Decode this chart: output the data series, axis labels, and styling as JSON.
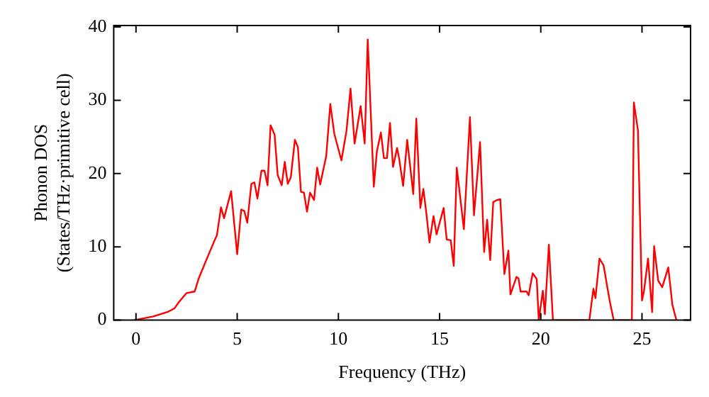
{
  "chart_data": {
    "type": "line",
    "xlabel": "Frequency (THz)",
    "ylabel": "Phonon DOS\n(States/THz·primitive cell)",
    "xlim": [
      -1.1,
      27.4
    ],
    "xticks": [
      0,
      5,
      10,
      15,
      20,
      25
    ],
    "ylim": [
      0,
      40.2
    ],
    "yticks": [
      0,
      10,
      20,
      30,
      40
    ],
    "grid": false,
    "legend": false,
    "marker": "none",
    "line_style": "solid",
    "x": [
      -0.1,
      0.85,
      1.55,
      1.9,
      2.1,
      2.5,
      2.9,
      3.1,
      3.55,
      3.9,
      4.0,
      4.2,
      4.35,
      4.7,
      5.0,
      5.2,
      5.35,
      5.5,
      5.7,
      5.85,
      6.0,
      6.2,
      6.35,
      6.5,
      6.65,
      6.85,
      7.0,
      7.2,
      7.35,
      7.5,
      7.65,
      7.85,
      8.0,
      8.15,
      8.3,
      8.45,
      8.6,
      8.8,
      8.95,
      9.1,
      9.4,
      9.6,
      9.8,
      10.15,
      10.4,
      10.6,
      10.8,
      11.1,
      11.3,
      11.45,
      11.75,
      11.9,
      12.1,
      12.25,
      12.4,
      12.55,
      12.7,
      12.9,
      13.0,
      13.2,
      13.4,
      13.7,
      13.85,
      14.05,
      14.2,
      14.35,
      14.5,
      14.7,
      14.85,
      15.2,
      15.35,
      15.55,
      15.7,
      15.85,
      16.2,
      16.5,
      16.7,
      17.0,
      17.2,
      17.35,
      17.5,
      17.65,
      17.85,
      18.0,
      18.2,
      18.4,
      18.5,
      18.8,
      18.9,
      19.0,
      19.3,
      19.4,
      19.6,
      19.8,
      19.9,
      20.1,
      20.2,
      20.4,
      20.6,
      22.4,
      22.6,
      22.7,
      22.9,
      23.1,
      23.4,
      23.6,
      24.5,
      24.6,
      24.8,
      25.0,
      25.1,
      25.3,
      25.5,
      25.6,
      25.8,
      26.0,
      26.3,
      26.5,
      26.7
    ],
    "series": [
      {
        "color": "#ff0000",
        "values": [
          0,
          0.5,
          1.1,
          1.6,
          2.4,
          3.7,
          3.9,
          5.7,
          8.7,
          11,
          11.6,
          15.4,
          13.9,
          17.6,
          9,
          15.1,
          14.9,
          13.3,
          18.6,
          18.8,
          16.6,
          20.4,
          20.4,
          18.4,
          26.6,
          25.3,
          19.8,
          18.4,
          21.6,
          18.6,
          19.5,
          24.6,
          23.6,
          17.5,
          17.4,
          14.8,
          17.4,
          16.4,
          20.8,
          18.5,
          22.4,
          29.5,
          25.4,
          21.8,
          25.8,
          31.6,
          24.1,
          29.2,
          24.1,
          38.3,
          18.2,
          23.0,
          25.6,
          22.1,
          22.1,
          26.9,
          20.9,
          23.5,
          22.1,
          18.3,
          24.6,
          17.2,
          27.5,
          15.3,
          17.9,
          14.5,
          10.6,
          14.2,
          11.7,
          15.3,
          11.0,
          10.9,
          7.4,
          20.8,
          12.4,
          27.7,
          14.3,
          24.3,
          9.3,
          13.7,
          8.2,
          16.1,
          16.4,
          16.5,
          6.3,
          9.5,
          3.5,
          5.9,
          5.7,
          3.9,
          3.9,
          3.4,
          6.4,
          5.6,
          0,
          4.0,
          0.8,
          10.3,
          0,
          0,
          4.3,
          3.0,
          8.4,
          7.5,
          2.7,
          0,
          0,
          29.7,
          25.9,
          2.7,
          4.0,
          8.4,
          1.1,
          10.1,
          5.4,
          4.5,
          7.2,
          2.1,
          0
        ]
      }
    ]
  }
}
